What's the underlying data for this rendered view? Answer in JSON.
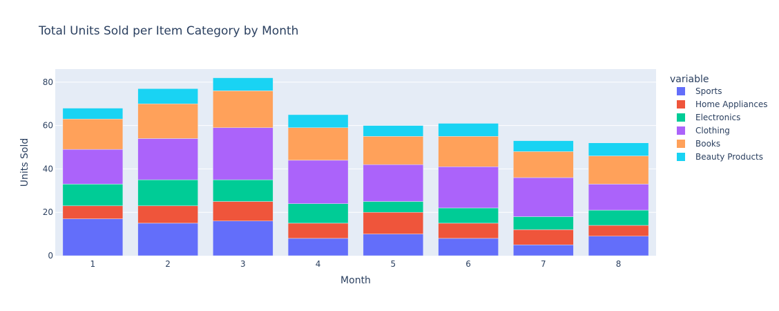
{
  "chart_data": {
    "type": "bar",
    "barmode": "stack",
    "title": "Total Units Sold per Item Category by Month",
    "xlabel": "Month",
    "ylabel": "Units Sold",
    "categories": [
      "1",
      "2",
      "3",
      "4",
      "5",
      "6",
      "7",
      "8"
    ],
    "ylim": [
      0,
      86
    ],
    "yticks": [
      0,
      20,
      40,
      60,
      80
    ],
    "grid": true,
    "legend_title": "variable",
    "legend_position": "right",
    "series": [
      {
        "name": "Sports",
        "color": "#636efa",
        "values": [
          17,
          15,
          16,
          8,
          10,
          8,
          5,
          9
        ]
      },
      {
        "name": "Home Appliances",
        "color": "#ef553b",
        "values": [
          6,
          8,
          9,
          7,
          10,
          7,
          7,
          5
        ]
      },
      {
        "name": "Electronics",
        "color": "#00cc96",
        "values": [
          10,
          12,
          10,
          9,
          5,
          7,
          6,
          7
        ]
      },
      {
        "name": "Clothing",
        "color": "#ab63fa",
        "values": [
          16,
          19,
          24,
          20,
          17,
          19,
          18,
          12
        ]
      },
      {
        "name": "Books",
        "color": "#ffa15a",
        "values": [
          14,
          16,
          17,
          15,
          13,
          14,
          12,
          13
        ]
      },
      {
        "name": "Beauty Products",
        "color": "#19d3f3",
        "values": [
          5,
          7,
          6,
          6,
          5,
          6,
          5,
          6
        ]
      }
    ]
  },
  "colors": {
    "plot_background": "#e5ecf6",
    "grid": "#ffffff",
    "text": "#2a3f5f"
  }
}
